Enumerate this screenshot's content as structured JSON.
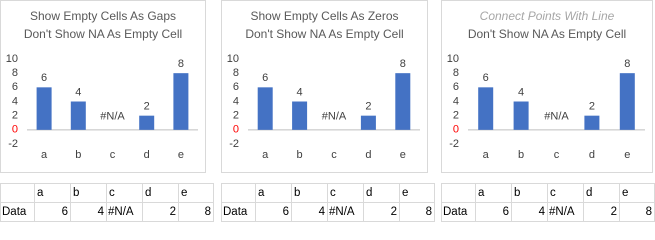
{
  "chart_data": [
    {
      "type": "bar",
      "title": [
        "Show Empty Cells As Gaps",
        "Don't Show NA As Empty Cell"
      ],
      "title_first_line_muted": false,
      "categories": [
        "a",
        "b",
        "c",
        "d",
        "e"
      ],
      "values": [
        6,
        4,
        null,
        2,
        8
      ],
      "value_labels": [
        "6",
        "4",
        "#N/A",
        "2",
        "8"
      ],
      "color": "#4472c4",
      "ylim": [
        -2,
        10
      ],
      "yticks": [
        -2,
        0,
        2,
        4,
        6,
        8,
        10
      ],
      "zero_label_color": "#ff0000"
    },
    {
      "type": "bar",
      "title": [
        "Show Empty Cells As Zeros",
        "Don't Show NA As Empty Cell"
      ],
      "title_first_line_muted": false,
      "categories": [
        "a",
        "b",
        "c",
        "d",
        "e"
      ],
      "values": [
        6,
        4,
        null,
        2,
        8
      ],
      "value_labels": [
        "6",
        "4",
        "#N/A",
        "2",
        "8"
      ],
      "color": "#4472c4",
      "ylim": [
        -2,
        10
      ],
      "yticks": [
        -2,
        0,
        2,
        4,
        6,
        8,
        10
      ],
      "zero_label_color": "#ff0000"
    },
    {
      "type": "bar",
      "title": [
        "Connect Points With Line",
        "Don't Show NA As Empty Cell"
      ],
      "title_first_line_muted": true,
      "categories": [
        "a",
        "b",
        "c",
        "d",
        "e"
      ],
      "values": [
        6,
        4,
        null,
        2,
        8
      ],
      "value_labels": [
        "6",
        "4",
        "#N/A",
        "2",
        "8"
      ],
      "color": "#4472c4",
      "ylim": [
        -2,
        10
      ],
      "yticks": [
        -2,
        0,
        2,
        4,
        6,
        8,
        10
      ],
      "zero_label_color": "#ff0000"
    }
  ],
  "tables": [
    {
      "columns": [
        "a",
        "b",
        "c",
        "d",
        "e"
      ],
      "row_label": "Data",
      "values": [
        6,
        4,
        "#N/A",
        2,
        8
      ]
    },
    {
      "columns": [
        "a",
        "b",
        "c",
        "d",
        "e"
      ],
      "row_label": "Data",
      "values": [
        6,
        4,
        "#N/A",
        2,
        8
      ]
    },
    {
      "columns": [
        "a",
        "b",
        "c",
        "d",
        "e"
      ],
      "row_label": "Data",
      "values": [
        6,
        4,
        "#N/A",
        2,
        8
      ]
    }
  ]
}
